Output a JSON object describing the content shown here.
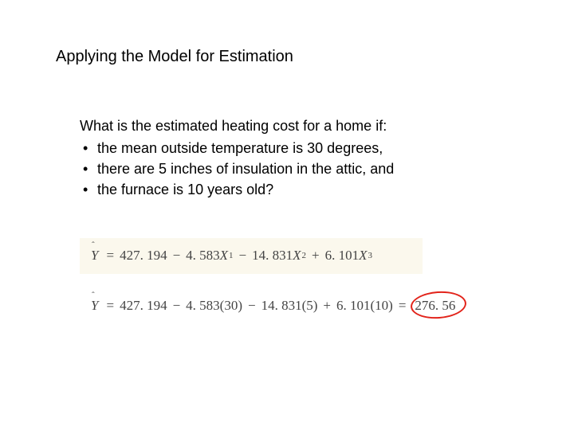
{
  "title": "Applying the Model for Estimation",
  "question": "What is the estimated heating cost for a home if:",
  "bullets": [
    "the mean outside temperature is 30 degrees,",
    "there are 5 inches of insulation in the attic, and",
    "the furnace is 10 years old?"
  ],
  "equation_general": {
    "yhat": "Y",
    "eq": "=",
    "intercept": "427. 194",
    "minus": "−",
    "b1": "4. 583",
    "x1": "X",
    "s1": "1",
    "b2": "14. 831",
    "x2": "X",
    "s2": "2",
    "plus": "+",
    "b3": "6. 101",
    "x3": "X",
    "s3": "3"
  },
  "equation_sub": {
    "yhat": "Y",
    "eq": "=",
    "intercept": "427. 194",
    "minus": "−",
    "b1": "4. 583",
    "v1": "(30)",
    "b2": "14. 831",
    "v2": "(5)",
    "plus": "+",
    "b3": "6. 101",
    "v3": "(10)",
    "result": "276. 56"
  },
  "styles": {
    "highlight_bg": "#fbf8ed",
    "circle_color": "#e2231a",
    "text_color": "#000000",
    "eq_color": "#444444",
    "title_fontsize": 20,
    "body_fontsize": 18,
    "eq_fontsize": 17
  }
}
